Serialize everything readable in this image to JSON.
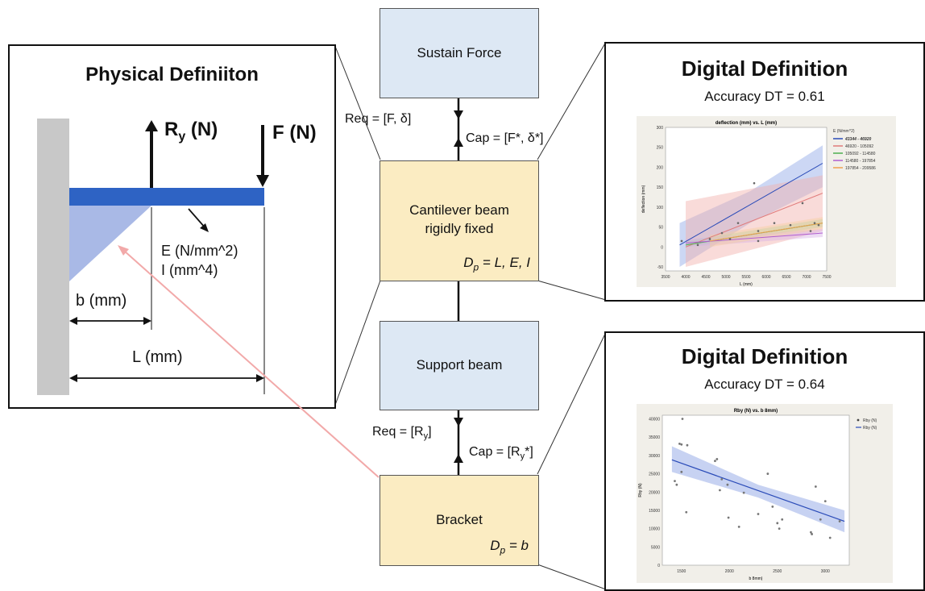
{
  "physical": {
    "title": "Physical Definiiton",
    "ry_main": "R",
    "ry_sub": "y",
    "ry_unit": " (N)",
    "force": "F (N)",
    "props": [
      "E (N/mm^2)",
      "I (mm^4)"
    ],
    "b_label": "b (mm)",
    "l_label": "L (mm)"
  },
  "hierarchy": {
    "sustain": "Sustain Force",
    "req1": "Req = [F, δ]",
    "cap1": "Cap = [F*, δ*]",
    "cantilever": "Cantilever beam\nrigidly fixed",
    "dp1_main": "D",
    "dp1_sub": "p",
    "dp1_val": " = L, E, I",
    "support": "Support beam",
    "req2_main": "Req = [R",
    "req2_sub": "y",
    "req2_end": "]",
    "cap2_main": "Cap = [R",
    "cap2_sub": "y",
    "cap2_end": "*]",
    "bracket": "Bracket",
    "dp2_main": "D",
    "dp2_sub": "p",
    "dp2_val": " = b"
  },
  "digital1": {
    "title": "Digital Definition",
    "accuracy": "Accuracy DT = 0.61"
  },
  "digital2": {
    "title": "Digital Definition",
    "accuracy": "Accuracy DT = 0.64"
  },
  "colors": {
    "beam": "#2e63c4",
    "wall": "#c8c8c8",
    "triangle": "#a9b9e6",
    "blue_box": "#dde8f4",
    "yellow_box": "#fbecc2",
    "pink_arrow": "#f2a9a9"
  },
  "chart_data": [
    {
      "type": "scatter",
      "title": "deflection (mm) vs. L (mm)",
      "xlabel": "L (mm)",
      "ylabel": "deflection (mm)",
      "xlim": [
        3500,
        7500
      ],
      "ylim": [
        -60,
        300
      ],
      "xticks": [
        3500,
        4000,
        4500,
        5000,
        5500,
        6000,
        6500,
        7000,
        7500
      ],
      "yticks": [
        -50,
        0,
        50,
        100,
        150,
        200,
        250,
        300
      ],
      "legend_title": "E (N/mm^2)",
      "legend_position": "right",
      "series": [
        {
          "name": "43344 - 46920",
          "color": "#2a4bb8",
          "band": "#8fa6e6",
          "line": [
            [
              3850,
              5
            ],
            [
              7400,
              210
            ]
          ],
          "band_lo": [
            [
              3850,
              -50
            ],
            [
              5600,
              60
            ],
            [
              7400,
              150
            ]
          ],
          "band_hi": [
            [
              3850,
              60
            ],
            [
              5600,
              140
            ],
            [
              7400,
              255
            ]
          ]
        },
        {
          "name": "46920 - 105092",
          "color": "#e07a7a",
          "band": "#f2b0aa",
          "line": [
            [
              4000,
              0
            ],
            [
              7400,
              135
            ]
          ],
          "band_lo": [
            [
              4000,
              -50
            ],
            [
              7400,
              40
            ]
          ],
          "band_hi": [
            [
              4000,
              115
            ],
            [
              7400,
              180
            ]
          ]
        },
        {
          "name": "105092 - 114580",
          "color": "#4caf50",
          "band": "#a5d6a7",
          "line": [
            [
              4000,
              5
            ],
            [
              7400,
              60
            ]
          ],
          "band_lo": [
            [
              4000,
              0
            ],
            [
              7400,
              50
            ]
          ],
          "band_hi": [
            [
              4000,
              15
            ],
            [
              7400,
              70
            ]
          ]
        },
        {
          "name": "114580 - 197854",
          "color": "#b05ed0",
          "band": "#d8b2e6",
          "line": [
            [
              4000,
              10
            ],
            [
              7400,
              35
            ]
          ],
          "band_lo": [
            [
              4000,
              0
            ],
            [
              7400,
              25
            ]
          ],
          "band_hi": [
            [
              4000,
              20
            ],
            [
              7400,
              45
            ]
          ]
        },
        {
          "name": "197854 - 209586",
          "color": "#f0a050",
          "band": "#f7cfa0",
          "line": [
            [
              4600,
              15
            ],
            [
              7400,
              60
            ]
          ],
          "band_lo": [
            [
              4600,
              0
            ],
            [
              7400,
              45
            ]
          ],
          "band_hi": [
            [
              4600,
              30
            ],
            [
              7400,
              75
            ]
          ]
        }
      ],
      "points": [
        [
          3900,
          15
        ],
        [
          4300,
          5
        ],
        [
          4600,
          20
        ],
        [
          4900,
          35
        ],
        [
          5100,
          20
        ],
        [
          5300,
          60
        ],
        [
          5700,
          160
        ],
        [
          5800,
          40
        ],
        [
          5800,
          15
        ],
        [
          6200,
          60
        ],
        [
          6600,
          55
        ],
        [
          6900,
          110
        ],
        [
          7100,
          40
        ],
        [
          7200,
          60
        ],
        [
          7300,
          55
        ]
      ]
    },
    {
      "type": "scatter",
      "title": "Rby (N) vs. b 8mm)",
      "xlabel": "b 8mm)",
      "ylabel": "Rby (N)",
      "xlim": [
        1300,
        3250
      ],
      "ylim": [
        0,
        41000
      ],
      "xticks": [
        1500,
        2000,
        2500,
        3000
      ],
      "yticks": [
        0,
        5000,
        10000,
        15000,
        20000,
        25000,
        30000,
        35000,
        40000
      ],
      "legend": [
        "Rby (N)",
        "Rby (N)"
      ],
      "legend_position": "top-right",
      "line": [
        [
          1400,
          28800
        ],
        [
          3200,
          12000
        ]
      ],
      "band_lo": [
        [
          1400,
          25500
        ],
        [
          2300,
          18500
        ],
        [
          3200,
          9000
        ]
      ],
      "band_hi": [
        [
          1400,
          32500
        ],
        [
          2300,
          22000
        ],
        [
          3200,
          15000
        ]
      ],
      "points": [
        [
          1430,
          23000
        ],
        [
          1450,
          22000
        ],
        [
          1480,
          33200
        ],
        [
          1500,
          33000
        ],
        [
          1500,
          25500
        ],
        [
          1510,
          40000
        ],
        [
          1550,
          14500
        ],
        [
          1560,
          32800
        ],
        [
          1850,
          28500
        ],
        [
          1870,
          29000
        ],
        [
          1900,
          20500
        ],
        [
          1920,
          23500
        ],
        [
          1980,
          22000
        ],
        [
          1990,
          13000
        ],
        [
          2100,
          10500
        ],
        [
          2150,
          19800
        ],
        [
          2300,
          14000
        ],
        [
          2400,
          25000
        ],
        [
          2450,
          16000
        ],
        [
          2500,
          11500
        ],
        [
          2520,
          10000
        ],
        [
          2550,
          12500
        ],
        [
          2850,
          9000
        ],
        [
          2860,
          8500
        ],
        [
          2900,
          21500
        ],
        [
          2950,
          12500
        ],
        [
          3000,
          17500
        ],
        [
          3050,
          7500
        ],
        [
          3150,
          12000
        ]
      ]
    }
  ]
}
